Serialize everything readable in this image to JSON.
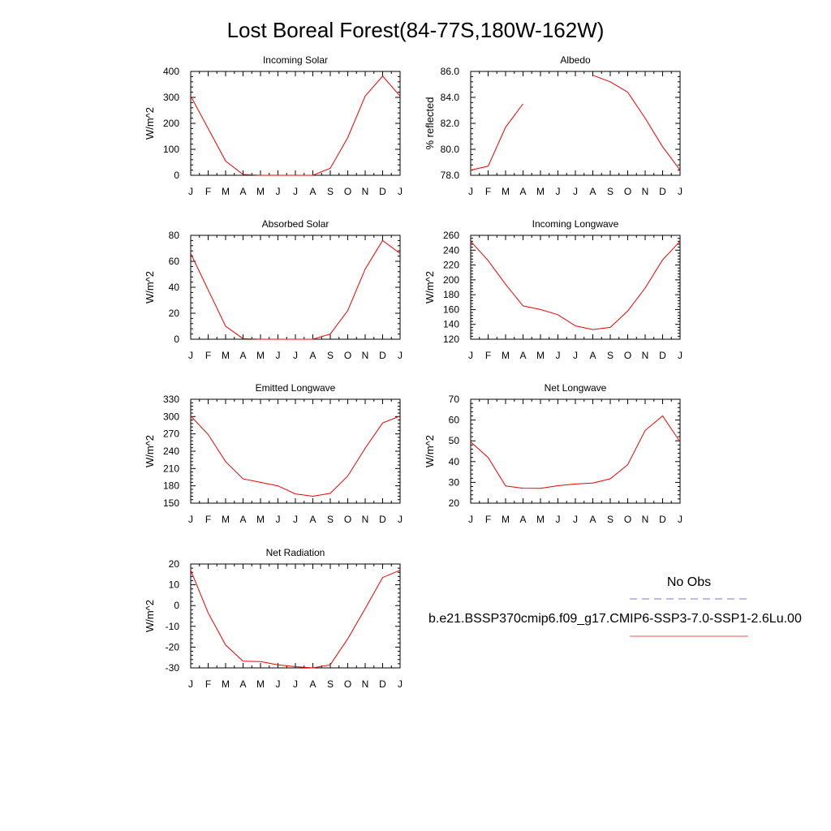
{
  "figure": {
    "title": "Lost Boreal Forest(84-77S,180W-162W)"
  },
  "legend": {
    "entries": [
      {
        "label": "No Obs",
        "color": "#7777dd",
        "style": "dashed"
      },
      {
        "label": "b.e21.BSSP370cmip6.f09_g17.CMIP6-SSP3-7.0-SSP1-2.6Lu.00",
        "color": "#ee5555",
        "style": "solid"
      }
    ]
  },
  "chart_data": [
    {
      "type": "line",
      "title": "Incoming Solar",
      "ylabel": "W/m^2",
      "categories": [
        "J",
        "F",
        "M",
        "A",
        "M",
        "J",
        "J",
        "A",
        "S",
        "O",
        "N",
        "D",
        "J"
      ],
      "ylim": [
        0,
        400
      ],
      "yticks": [
        0,
        100,
        200,
        300,
        400
      ],
      "tick_decimals": 0,
      "series": [
        {
          "color": "#ee0000",
          "values": [
            305,
            180,
            55,
            3,
            0,
            0,
            0,
            0,
            27,
            145,
            305,
            382,
            305
          ]
        }
      ]
    },
    {
      "type": "line",
      "title": "Albedo",
      "ylabel": "% reflected",
      "categories": [
        "J",
        "F",
        "M",
        "A",
        "M",
        "J",
        "J",
        "A",
        "S",
        "O",
        "N",
        "D",
        "J"
      ],
      "ylim": [
        78.0,
        86.0
      ],
      "yticks": [
        78.0,
        80.0,
        82.0,
        84.0,
        86.0
      ],
      "tick_decimals": 1,
      "series": [
        {
          "color": "#ee0000",
          "values": [
            78.4,
            78.7,
            81.7,
            83.5,
            null,
            null,
            null,
            85.7,
            85.2,
            84.4,
            82.4,
            80.2,
            78.4
          ]
        }
      ]
    },
    {
      "type": "line",
      "title": "Absorbed Solar",
      "ylabel": "W/m^2",
      "categories": [
        "J",
        "F",
        "M",
        "A",
        "M",
        "J",
        "J",
        "A",
        "S",
        "O",
        "N",
        "D",
        "J"
      ],
      "ylim": [
        0,
        80
      ],
      "yticks": [
        0,
        20,
        40,
        60,
        80
      ],
      "tick_decimals": 0,
      "series": [
        {
          "color": "#ee0000",
          "values": [
            66,
            38,
            10,
            0.5,
            0,
            0,
            0,
            0,
            4,
            22,
            54,
            76,
            66
          ]
        }
      ]
    },
    {
      "type": "line",
      "title": "Incoming Longwave",
      "ylabel": "W/m^2",
      "categories": [
        "J",
        "F",
        "M",
        "A",
        "M",
        "J",
        "J",
        "A",
        "S",
        "O",
        "N",
        "D",
        "J"
      ],
      "ylim": [
        120,
        260
      ],
      "yticks": [
        120,
        140,
        160,
        180,
        200,
        220,
        240,
        260
      ],
      "tick_decimals": 0,
      "series": [
        {
          "color": "#ee0000",
          "values": [
            252,
            226,
            194,
            165,
            160,
            153,
            138,
            133,
            136,
            158,
            189,
            227,
            252
          ]
        }
      ]
    },
    {
      "type": "line",
      "title": "Emitted Longwave",
      "ylabel": "W/m^2",
      "categories": [
        "J",
        "F",
        "M",
        "A",
        "M",
        "J",
        "J",
        "A",
        "S",
        "O",
        "N",
        "D",
        "J"
      ],
      "ylim": [
        150,
        330
      ],
      "yticks": [
        150,
        180,
        210,
        240,
        270,
        300,
        330
      ],
      "tick_decimals": 0,
      "series": [
        {
          "color": "#ee0000",
          "values": [
            301,
            269,
            222,
            192,
            186,
            180,
            166,
            162,
            167,
            197,
            245,
            289,
            301
          ]
        }
      ]
    },
    {
      "type": "line",
      "title": "Net Longwave",
      "ylabel": "W/m^2",
      "categories": [
        "J",
        "F",
        "M",
        "A",
        "M",
        "J",
        "J",
        "A",
        "S",
        "O",
        "N",
        "D",
        "J"
      ],
      "ylim": [
        20,
        70
      ],
      "yticks": [
        20,
        30,
        40,
        50,
        60,
        70
      ],
      "tick_decimals": 0,
      "series": [
        {
          "color": "#ee0000",
          "values": [
            49.5,
            42,
            28.3,
            27.2,
            27.1,
            28.4,
            29.2,
            29.7,
            31.7,
            38.5,
            55,
            62,
            49.5
          ]
        }
      ]
    },
    {
      "type": "line",
      "title": "Net Radiation",
      "ylabel": "W/m^2",
      "categories": [
        "J",
        "F",
        "M",
        "A",
        "M",
        "J",
        "J",
        "A",
        "S",
        "O",
        "N",
        "D",
        "J"
      ],
      "ylim": [
        -30,
        20
      ],
      "yticks": [
        -30,
        -20,
        -10,
        0,
        10,
        20
      ],
      "tick_decimals": 0,
      "series": [
        {
          "color": "#ee0000",
          "values": [
            17,
            -3.5,
            -19,
            -26.8,
            -27,
            -28.5,
            -29.4,
            -30,
            -28.5,
            -16,
            -1.5,
            13.5,
            17
          ]
        }
      ]
    }
  ]
}
